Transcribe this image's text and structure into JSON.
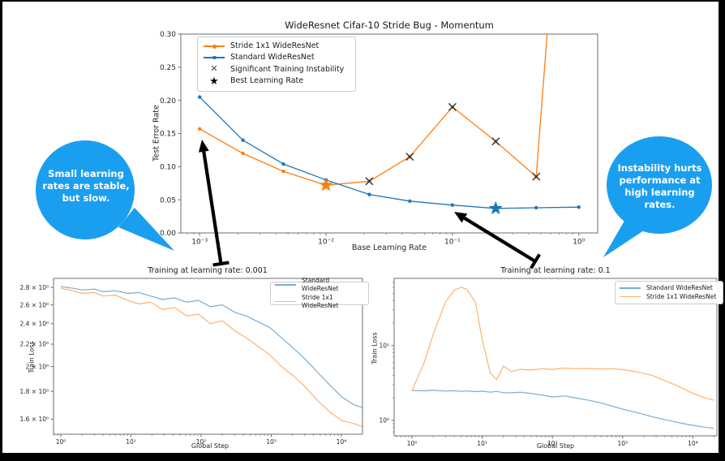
{
  "figure": {
    "background": "#ffffff",
    "frame_color": "#000000"
  },
  "icons": {
    "instability": "✕",
    "best": "★"
  },
  "callouts": {
    "left": {
      "text": "Small learning rates are stable, but slow.",
      "color": "#1a9ff0"
    },
    "right": {
      "text": "Instability hurts performance at high learning rates.",
      "color": "#1a9ff0"
    }
  },
  "chart_data": [
    {
      "id": "lr-sweep",
      "type": "line",
      "title": "WideResnet Cifar-10 Stride Bug - Momentum",
      "xlabel": "Base Learning Rate",
      "ylabel": "Test Error Rate",
      "xscale": "log",
      "yscale": "linear",
      "xlim": [
        0.00071,
        1.41
      ],
      "ylim": [
        0,
        0.3
      ],
      "xticks": [
        0.001,
        0.01,
        0.1,
        1
      ],
      "xtick_labels": [
        "10⁻³",
        "10⁻²",
        "10⁻¹",
        "10⁰"
      ],
      "yticks": [
        0,
        0.05,
        0.1,
        0.15,
        0.2,
        0.25,
        0.3
      ],
      "ytick_labels": [
        "0.00",
        "0.05",
        "0.10",
        "0.15",
        "0.20",
        "0.25",
        "0.30"
      ],
      "legend_position": "upper left",
      "series": [
        {
          "name": "Stride 1x1 WideResNet",
          "color": "#ff7f0e",
          "marker": "dot",
          "x": [
            0.001,
            0.0022,
            0.0046,
            0.01,
            0.022,
            0.046,
            0.1,
            0.22,
            0.46,
            1.0
          ],
          "y": [
            0.157,
            0.12,
            0.093,
            0.072,
            0.078,
            0.115,
            0.19,
            0.138,
            0.085,
            0.92
          ]
        },
        {
          "name": "Standard WideResNet",
          "color": "#1f77b4",
          "marker": "dot",
          "x": [
            0.001,
            0.0022,
            0.0046,
            0.01,
            0.022,
            0.046,
            0.1,
            0.22,
            0.46,
            1.0
          ],
          "y": [
            0.205,
            0.14,
            0.104,
            0.08,
            0.058,
            0.048,
            0.042,
            0.037,
            0.038,
            0.039
          ]
        }
      ],
      "instability_points": {
        "label": "Significant Training Instability",
        "series": "Stride 1x1 WideResNet",
        "x": [
          0.022,
          0.046,
          0.1,
          0.22,
          0.46
        ],
        "y": [
          0.078,
          0.115,
          0.19,
          0.138,
          0.085
        ]
      },
      "best_points": {
        "label": "Best Learning Rate",
        "points": [
          {
            "series": "Stride 1x1 WideResNet",
            "x": 0.01,
            "y": 0.072
          },
          {
            "series": "Standard WideResNet",
            "x": 0.22,
            "y": 0.037
          }
        ]
      }
    },
    {
      "id": "train-lr-0001",
      "type": "line",
      "title": "Training at learning rate: 0.001",
      "xlabel": "Global Step",
      "ylabel": "Train Loss",
      "xscale": "log",
      "yscale": "log",
      "xlim": [
        0.787,
        20000
      ],
      "ylim": [
        1.5,
        2.91
      ],
      "xticks": [
        1,
        10,
        100,
        1000,
        10000
      ],
      "xtick_labels": [
        "10⁰",
        "10¹",
        "10²",
        "10³",
        "10⁴"
      ],
      "yticks": [
        2.8,
        2.6,
        2.4,
        2.2,
        2,
        1.8,
        1.6
      ],
      "ytick_labels": [
        "2.8 × 10⁰",
        "2.6 × 10⁰",
        "2.4 × 10⁰",
        "2.2 × 10⁰",
        "2 × 10⁰",
        "1.8 × 10⁰",
        "1.6 × 10⁰"
      ],
      "legend_position": "upper right",
      "series": [
        {
          "name": "Standard WideResNet",
          "color": "#1f77b4",
          "light": true,
          "x": [
            1,
            1.5,
            2,
            3,
            4,
            6,
            9,
            13,
            19,
            28,
            42,
            62,
            92,
            135,
            200,
            300,
            440,
            650,
            960,
            1400,
            2100,
            3100,
            4600,
            6800,
            10000,
            15000,
            20000
          ],
          "y": [
            2.81,
            2.79,
            2.77,
            2.78,
            2.75,
            2.76,
            2.73,
            2.74,
            2.7,
            2.66,
            2.68,
            2.63,
            2.65,
            2.58,
            2.6,
            2.52,
            2.48,
            2.42,
            2.36,
            2.26,
            2.16,
            2.06,
            1.95,
            1.85,
            1.76,
            1.7,
            1.68
          ]
        },
        {
          "name": "Stride 1x1 WideResNet",
          "color": "#ff7f0e",
          "light": true,
          "x": [
            1,
            1.5,
            2,
            3,
            4,
            6,
            9,
            13,
            19,
            28,
            42,
            62,
            92,
            135,
            200,
            300,
            440,
            650,
            960,
            1400,
            2100,
            3100,
            4600,
            6800,
            10000,
            15000,
            20000
          ],
          "y": [
            2.79,
            2.76,
            2.73,
            2.74,
            2.7,
            2.71,
            2.65,
            2.61,
            2.63,
            2.55,
            2.57,
            2.48,
            2.5,
            2.4,
            2.43,
            2.33,
            2.26,
            2.18,
            2.1,
            2.0,
            1.92,
            1.83,
            1.73,
            1.65,
            1.59,
            1.57,
            1.55
          ]
        }
      ]
    },
    {
      "id": "train-lr-01",
      "type": "line",
      "title": "Training at learning rate: 0.1",
      "xlabel": "Global Step",
      "ylabel": "Train Loss",
      "xscale": "log",
      "yscale": "log",
      "xlim": [
        0.557,
        22000
      ],
      "ylim": [
        0.62,
        79
      ],
      "xticks": [
        1,
        10,
        100,
        1000,
        10000
      ],
      "xtick_labels": [
        "10⁰",
        "10¹",
        "10²",
        "10³",
        "10⁴"
      ],
      "yticks": [
        10,
        1
      ],
      "ytick_labels": [
        "10¹",
        "10⁰"
      ],
      "legend_position": "upper right",
      "series": [
        {
          "name": "Standard WideResNet",
          "color": "#1f77b4",
          "light": true,
          "x": [
            1,
            1.5,
            2,
            3,
            4,
            5,
            6,
            8,
            10,
            13,
            16,
            20,
            26,
            35,
            50,
            70,
            100,
            150,
            220,
            330,
            500,
            750,
            1100,
            1700,
            2600,
            4000,
            6000,
            9000,
            13500,
            20000
          ],
          "y": [
            2.5,
            2.48,
            2.52,
            2.46,
            2.49,
            2.44,
            2.47,
            2.42,
            2.45,
            2.38,
            2.43,
            2.35,
            2.33,
            2.38,
            2.28,
            2.18,
            2.05,
            2.12,
            1.98,
            1.85,
            1.7,
            1.52,
            1.38,
            1.25,
            1.12,
            1.02,
            0.94,
            0.87,
            0.82,
            0.78
          ]
        },
        {
          "name": "Stride 1x1 WideResNet",
          "color": "#ff7f0e",
          "light": true,
          "x": [
            1,
            1.5,
            2,
            3,
            4,
            5,
            6,
            8,
            10,
            13,
            16,
            20,
            26,
            35,
            50,
            70,
            100,
            150,
            220,
            330,
            500,
            750,
            1100,
            1700,
            2600,
            4000,
            6000,
            9000,
            13500,
            20000
          ],
          "y": [
            2.5,
            6,
            14,
            38,
            55,
            60,
            57,
            38,
            12,
            4.3,
            3.5,
            5.3,
            4.5,
            4.8,
            4.7,
            4.9,
            4.8,
            5.0,
            4.9,
            4.95,
            4.85,
            4.9,
            4.7,
            4.4,
            4.0,
            3.4,
            2.9,
            2.4,
            2.05,
            1.85
          ]
        }
      ]
    }
  ]
}
